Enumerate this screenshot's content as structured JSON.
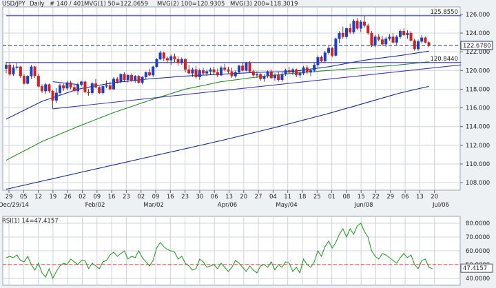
{
  "header": {
    "symbol": "USD/JPY",
    "period": "Daily",
    "bars": "# 140 / 401",
    "mvg1": "MVG(1) 50=122.0659",
    "mvg2": "MVG(2) 100=120.9305",
    "mvg3": "MVG(3) 200=118.3019"
  },
  "rsi_header": "RSI(1) 14=47.4157",
  "colors": {
    "bull": "#1a3fc8",
    "bear": "#d81f1f",
    "ma50": "#1f2f96",
    "ma100": "#2b8a2b",
    "ma200": "#1c2b86",
    "trend": "#3b3bb0",
    "rsi": "#2e9a2e",
    "rsi_ref": "#d62828",
    "grid": "#cdd4dc",
    "panel_bg": "#ffffff",
    "page_bg": "#eef1f4"
  },
  "chart_data": [
    {
      "type": "candlestick",
      "title": "USD/JPY",
      "y_axis_side": "right",
      "ylim": [
        107.2,
        126.8
      ],
      "y_ticks": [
        "126.000",
        "124.000",
        "122.000",
        "120.000",
        "118.000",
        "116.000",
        "114.000",
        "112.000",
        "110.000",
        "108.000"
      ],
      "x_day_ticks": [
        "29",
        "05",
        "12",
        "19",
        "26",
        "02",
        "09",
        "16",
        "23",
        "02",
        "09",
        "16",
        "23",
        "30",
        "06",
        "13",
        "20",
        "27",
        "04",
        "11",
        "18",
        "25",
        "01",
        "08",
        "15",
        "22",
        "29",
        "06",
        "13",
        "20"
      ],
      "x_month_labels": [
        "Dec/29/14",
        "Feb/02",
        "Mar/02",
        "Apr/06",
        "May/04",
        "Jun/08",
        "Jul/06"
      ],
      "price_labels": [
        {
          "text": "125.8550",
          "value": 125.855,
          "style": "solid"
        },
        {
          "text": "120.8440",
          "value": 120.844,
          "style": "solid"
        },
        {
          "text": "122.6780",
          "value": 122.678,
          "style": "dashed"
        }
      ],
      "candles": [
        [
          120.2,
          120.9,
          119.7,
          120.6
        ],
        [
          120.6,
          120.8,
          119.4,
          119.6
        ],
        [
          119.6,
          120.6,
          119.4,
          120.3
        ],
        [
          120.3,
          120.8,
          120.1,
          120.4
        ],
        [
          120.4,
          120.5,
          119.2,
          119.4
        ],
        [
          119.4,
          119.6,
          118.5,
          118.6
        ],
        [
          118.6,
          119.5,
          118.5,
          119.4
        ],
        [
          119.4,
          120.6,
          119.1,
          120.4
        ],
        [
          120.4,
          120.5,
          119.2,
          119.4
        ],
        [
          119.4,
          119.6,
          118.2,
          118.3
        ],
        [
          118.3,
          118.5,
          117.6,
          117.8
        ],
        [
          117.8,
          118.7,
          117.5,
          118.5
        ],
        [
          118.5,
          118.6,
          117.6,
          117.8
        ],
        [
          117.8,
          117.9,
          115.9,
          116.8
        ],
        [
          116.8,
          118.1,
          116.5,
          117.6
        ],
        [
          117.6,
          118.6,
          117.4,
          118.4
        ],
        [
          118.4,
          118.6,
          117.8,
          118.1
        ],
        [
          118.1,
          118.9,
          117.9,
          118.7
        ],
        [
          118.7,
          118.9,
          118.0,
          118.2
        ],
        [
          118.2,
          118.5,
          117.8,
          117.8
        ],
        [
          117.8,
          118.7,
          117.4,
          118.5
        ],
        [
          118.5,
          118.9,
          118.3,
          118.8
        ],
        [
          118.8,
          118.9,
          117.6,
          117.7
        ],
        [
          117.7,
          118.0,
          117.3,
          117.6
        ],
        [
          117.6,
          118.8,
          117.4,
          118.6
        ],
        [
          118.6,
          119.1,
          118.1,
          118.2
        ],
        [
          118.2,
          118.3,
          117.5,
          117.6
        ],
        [
          117.6,
          118.4,
          117.4,
          118.3
        ],
        [
          118.3,
          118.9,
          118.1,
          118.4
        ],
        [
          118.4,
          118.8,
          117.9,
          118.0
        ],
        [
          118.0,
          119.3,
          117.9,
          119.1
        ],
        [
          119.1,
          119.3,
          118.6,
          118.8
        ],
        [
          118.8,
          119.7,
          118.6,
          119.6
        ],
        [
          119.6,
          119.8,
          118.8,
          119.0
        ],
        [
          119.0,
          119.6,
          118.7,
          119.5
        ],
        [
          119.5,
          119.7,
          118.8,
          118.9
        ],
        [
          118.9,
          119.5,
          118.7,
          119.4
        ],
        [
          119.4,
          119.5,
          118.6,
          118.7
        ],
        [
          118.7,
          119.4,
          118.5,
          119.3
        ],
        [
          119.3,
          119.9,
          119.1,
          119.8
        ],
        [
          119.8,
          120.2,
          119.4,
          119.5
        ],
        [
          119.5,
          120.5,
          119.3,
          120.4
        ],
        [
          120.4,
          121.3,
          120.3,
          121.2
        ],
        [
          121.2,
          122.1,
          121.1,
          121.9
        ],
        [
          121.9,
          122.0,
          121.0,
          121.3
        ],
        [
          121.3,
          121.5,
          120.8,
          121.1
        ],
        [
          121.1,
          121.7,
          120.6,
          121.5
        ],
        [
          121.5,
          121.8,
          120.9,
          121.2
        ],
        [
          121.2,
          121.5,
          120.5,
          120.8
        ],
        [
          120.8,
          121.4,
          120.6,
          121.2
        ],
        [
          121.2,
          121.3,
          119.8,
          120.1
        ],
        [
          120.1,
          120.6,
          119.6,
          119.7
        ],
        [
          119.7,
          120.3,
          119.3,
          120.1
        ],
        [
          120.1,
          120.5,
          119.1,
          119.3
        ],
        [
          119.3,
          120.2,
          119.0,
          120.0
        ],
        [
          120.0,
          120.3,
          119.5,
          119.7
        ],
        [
          119.7,
          120.1,
          119.4,
          119.9
        ],
        [
          119.9,
          120.3,
          119.5,
          120.1
        ],
        [
          120.1,
          120.4,
          119.6,
          119.8
        ],
        [
          119.8,
          120.2,
          119.3,
          119.5
        ],
        [
          119.5,
          120.5,
          119.4,
          120.3
        ],
        [
          120.3,
          120.7,
          119.9,
          120.1
        ],
        [
          120.1,
          120.4,
          119.7,
          119.9
        ],
        [
          119.9,
          120.3,
          119.2,
          119.4
        ],
        [
          119.4,
          120.0,
          119.2,
          119.8
        ],
        [
          119.8,
          120.6,
          119.7,
          120.5
        ],
        [
          120.5,
          120.8,
          119.9,
          120.0
        ],
        [
          120.0,
          120.9,
          119.9,
          120.8
        ],
        [
          120.8,
          121.0,
          119.8,
          119.9
        ],
        [
          119.9,
          120.1,
          119.3,
          119.5
        ],
        [
          119.5,
          119.9,
          119.2,
          119.6
        ],
        [
          119.6,
          119.7,
          118.9,
          119.1
        ],
        [
          119.1,
          119.6,
          118.8,
          119.4
        ],
        [
          119.4,
          120.0,
          119.2,
          119.9
        ],
        [
          119.9,
          120.1,
          119.1,
          119.2
        ],
        [
          119.2,
          119.7,
          118.9,
          119.5
        ],
        [
          119.5,
          119.8,
          118.8,
          119.0
        ],
        [
          119.0,
          119.8,
          118.8,
          119.6
        ],
        [
          119.6,
          120.2,
          119.4,
          120.0
        ],
        [
          120.0,
          120.4,
          119.6,
          119.8
        ],
        [
          119.8,
          120.3,
          119.5,
          120.1
        ],
        [
          120.1,
          120.2,
          119.3,
          119.5
        ],
        [
          119.5,
          120.0,
          119.2,
          119.7
        ],
        [
          119.7,
          120.5,
          119.5,
          120.3
        ],
        [
          120.3,
          120.6,
          119.6,
          119.8
        ],
        [
          119.8,
          120.2,
          119.4,
          120.0
        ],
        [
          120.0,
          120.8,
          119.8,
          120.6
        ],
        [
          120.6,
          121.6,
          120.4,
          121.4
        ],
        [
          121.4,
          121.6,
          120.9,
          121.0
        ],
        [
          121.0,
          122.1,
          120.8,
          121.9
        ],
        [
          121.9,
          122.6,
          121.7,
          122.4
        ],
        [
          122.4,
          122.5,
          121.4,
          121.6
        ],
        [
          121.6,
          123.5,
          121.5,
          123.4
        ],
        [
          123.4,
          124.2,
          122.9,
          124.0
        ],
        [
          124.0,
          124.7,
          123.4,
          123.6
        ],
        [
          123.6,
          124.6,
          123.4,
          124.5
        ],
        [
          124.5,
          125.0,
          123.9,
          124.1
        ],
        [
          124.1,
          125.5,
          123.9,
          125.3
        ],
        [
          125.3,
          125.6,
          124.3,
          124.5
        ],
        [
          124.5,
          125.4,
          124.1,
          125.2
        ],
        [
          125.2,
          125.86,
          124.6,
          124.8
        ],
        [
          124.8,
          125.0,
          123.8,
          124.0
        ],
        [
          124.0,
          124.2,
          122.5,
          122.7
        ],
        [
          122.7,
          123.8,
          122.5,
          123.6
        ],
        [
          123.6,
          123.9,
          123.1,
          123.3
        ],
        [
          123.3,
          123.7,
          122.6,
          122.8
        ],
        [
          122.8,
          123.6,
          122.5,
          123.4
        ],
        [
          123.4,
          123.9,
          123.2,
          123.6
        ],
        [
          123.6,
          124.0,
          122.9,
          123.0
        ],
        [
          123.0,
          123.8,
          122.7,
          123.6
        ],
        [
          123.6,
          124.4,
          123.4,
          124.2
        ],
        [
          124.2,
          124.5,
          123.7,
          123.8
        ],
        [
          123.8,
          124.3,
          123.4,
          124.0
        ],
        [
          124.0,
          124.2,
          123.1,
          123.2
        ],
        [
          123.2,
          123.4,
          122.1,
          122.3
        ],
        [
          122.3,
          123.3,
          122.1,
          123.1
        ],
        [
          123.1,
          123.8,
          122.9,
          123.5
        ],
        [
          123.5,
          123.6,
          122.9,
          123.0
        ],
        [
          123.0,
          123.1,
          122.5,
          122.68
        ]
      ],
      "ma_keys": [
        {
          "name": "MVG(1) 50",
          "last": 122.0659,
          "key": [
            [
              0,
              114.8
            ],
            [
              10,
              116.7
            ],
            [
              20,
              118.0
            ],
            [
              30,
              118.7
            ],
            [
              40,
              119.1
            ],
            [
              50,
              119.4
            ],
            [
              60,
              119.6
            ],
            [
              70,
              119.8
            ],
            [
              80,
              119.9
            ],
            [
              90,
              120.4
            ],
            [
              100,
              121.1
            ],
            [
              110,
              121.6
            ],
            [
              118,
              122.07
            ]
          ]
        },
        {
          "name": "MVG(2) 100",
          "last": 120.9305,
          "key": [
            [
              0,
              110.4
            ],
            [
              10,
              112.4
            ],
            [
              20,
              114.0
            ],
            [
              30,
              115.5
            ],
            [
              40,
              116.8
            ],
            [
              50,
              118.0
            ],
            [
              60,
              118.8
            ],
            [
              70,
              119.3
            ],
            [
              80,
              119.7
            ],
            [
              90,
              120.0
            ],
            [
              100,
              120.3
            ],
            [
              110,
              120.6
            ],
            [
              118,
              120.93
            ]
          ]
        },
        {
          "name": "MVG(3) 200",
          "last": 118.3019,
          "key": [
            [
              0,
              107.3
            ],
            [
              15,
              108.6
            ],
            [
              30,
              109.9
            ],
            [
              45,
              111.2
            ],
            [
              60,
              112.5
            ],
            [
              75,
              113.9
            ],
            [
              90,
              115.4
            ],
            [
              100,
              116.5
            ],
            [
              110,
              117.6
            ],
            [
              118,
              118.3
            ]
          ]
        }
      ],
      "trendlines": [
        {
          "from": [
            13,
            115.9
          ],
          "to": [
            127,
            120.6
          ]
        },
        {
          "from": [
            13,
            118.8
          ],
          "to": [
            20,
            118.5
          ]
        },
        {
          "from": [
            0,
            120.844
          ],
          "to": [
            127,
            120.844
          ]
        },
        {
          "from": [
            0,
            125.855
          ],
          "to": [
            127,
            125.855
          ]
        }
      ],
      "grid": true
    },
    {
      "type": "line",
      "title": "RSI(1) 14=47.4157",
      "y_axis_side": "right",
      "ylim": [
        35,
        85
      ],
      "y_ticks": [
        "80.0000",
        "70.0000",
        "60.0000",
        "50.0000",
        "40.0000"
      ],
      "reference_line": 50,
      "last_label": "47.4157",
      "series": [
        {
          "values": [
            55,
            56,
            55,
            57,
            53,
            52,
            56,
            50,
            46,
            51,
            44,
            41,
            47,
            40,
            45,
            49,
            51,
            50,
            54,
            52,
            50,
            53,
            53,
            47,
            51,
            49,
            47,
            52,
            53,
            57,
            59,
            56,
            58,
            60,
            54,
            56,
            55,
            60,
            55,
            52,
            49,
            53,
            62,
            66,
            63,
            61,
            60,
            59,
            54,
            56,
            51,
            49,
            46,
            47,
            54,
            52,
            48,
            49,
            50,
            47,
            51,
            48,
            45,
            48,
            53,
            51,
            48,
            45,
            49,
            46,
            44,
            49,
            50,
            48,
            52,
            46,
            50,
            48,
            52,
            51,
            45,
            48,
            44,
            54,
            50,
            48,
            52,
            60,
            56,
            63,
            67,
            62,
            66,
            72,
            76,
            70,
            76,
            72,
            78,
            80,
            74,
            70,
            60,
            56,
            54,
            58,
            57,
            55,
            53,
            51,
            55,
            58,
            55,
            57,
            50,
            47,
            53,
            54,
            48,
            47
          ]
        }
      ]
    }
  ]
}
